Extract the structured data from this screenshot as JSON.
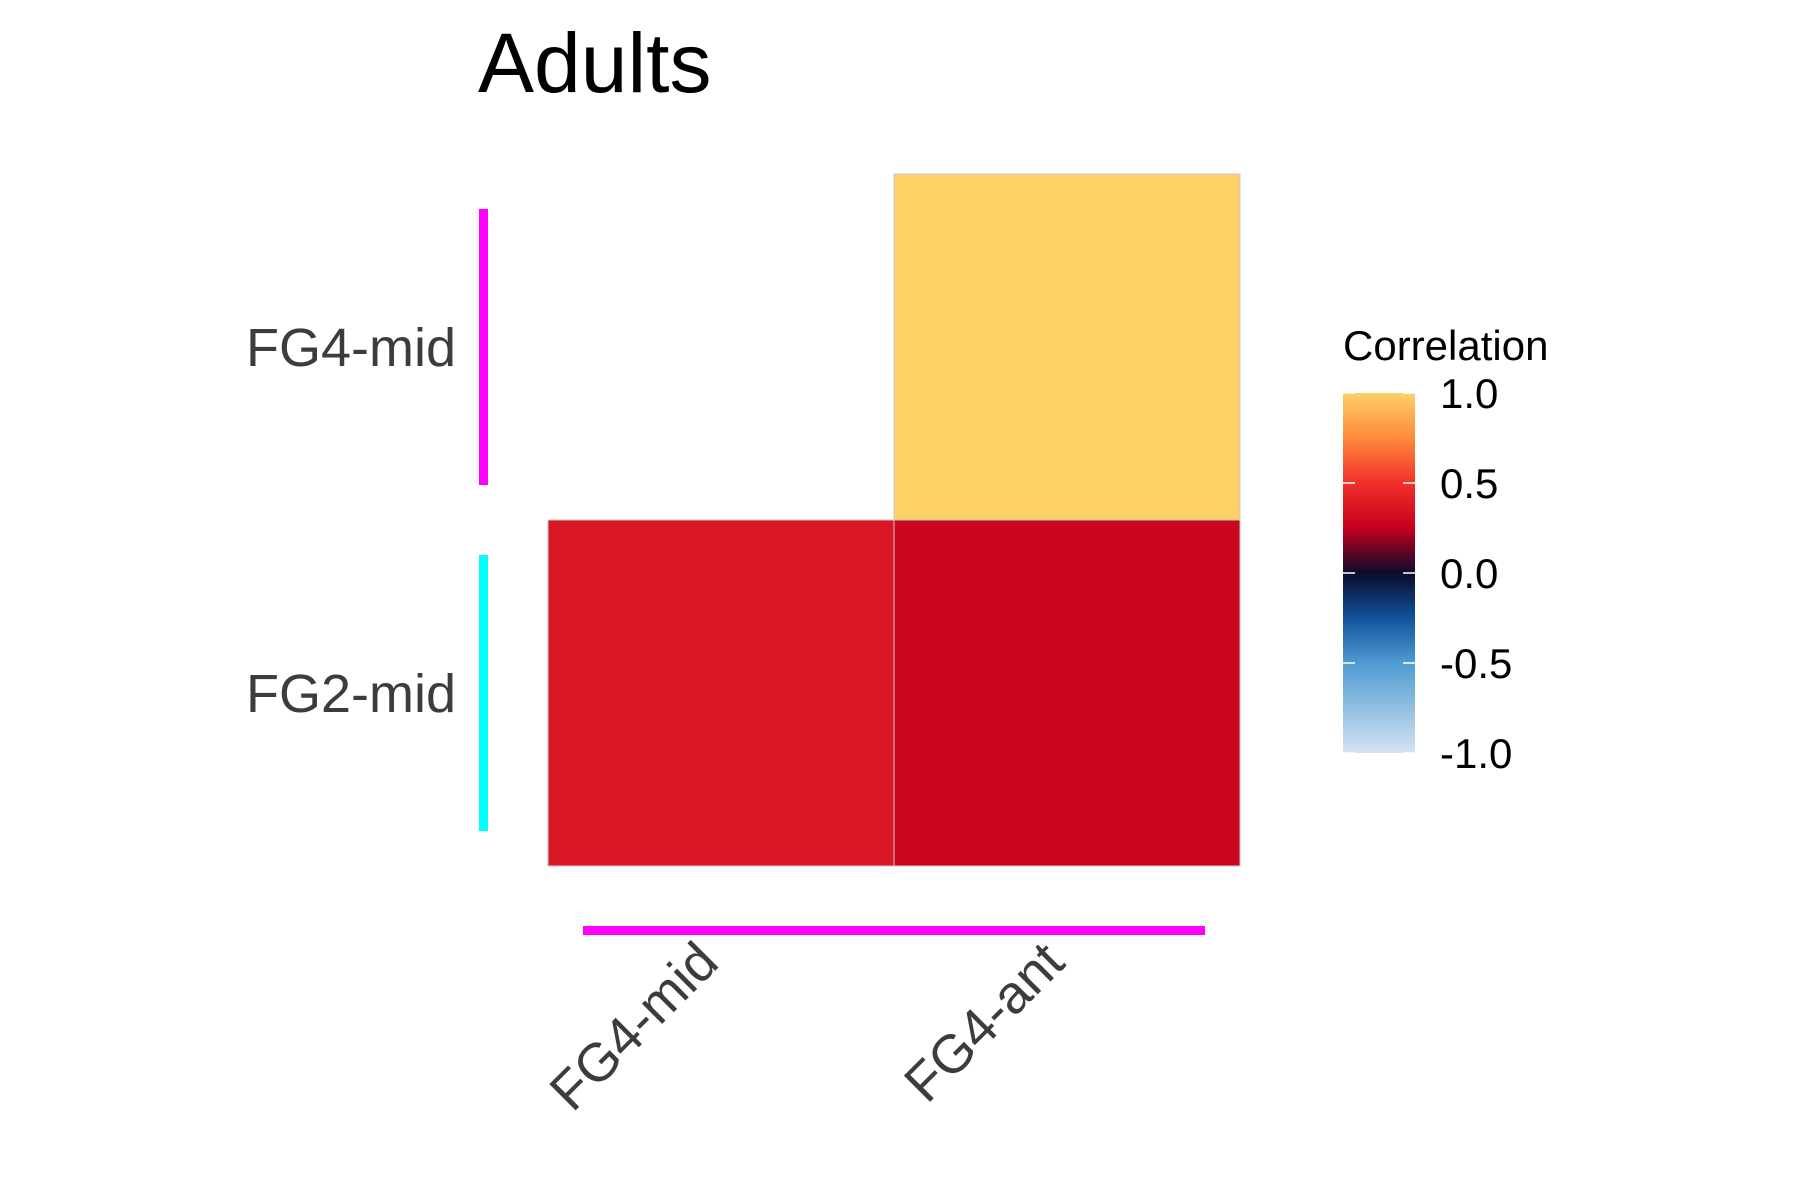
{
  "chart_data": {
    "type": "heatmap",
    "title": "Adults",
    "x_categories": [
      "FG4-mid",
      "FG4-ant"
    ],
    "y_categories": [
      "FG4-mid",
      "FG2-mid"
    ],
    "cells": [
      {
        "x": "FG4-ant",
        "y": "FG4-mid",
        "value": 1.0
      },
      {
        "x": "FG4-mid",
        "y": "FG2-mid",
        "value": 0.37
      },
      {
        "x": "FG4-ant",
        "y": "FG2-mid",
        "value": 0.28
      }
    ],
    "x_group_colors": [
      "#ff00ff",
      "#ff00ff"
    ],
    "y_group_colors": [
      "#ff00ff",
      "#00ffff"
    ],
    "legend": {
      "title": "Correlation",
      "ticks": [
        "1.0",
        "0.5",
        "0.0",
        "-0.5",
        "-1.0"
      ],
      "tick_values": [
        1.0,
        0.5,
        0.0,
        -0.5,
        -1.0
      ],
      "range": [
        -1,
        1
      ],
      "placement": "right"
    },
    "colorscale": [
      {
        "value": -1.0,
        "color": "#d3e3f3"
      },
      {
        "value": -0.5,
        "color": "#4f9bd1"
      },
      {
        "value": -0.25,
        "color": "#11539b"
      },
      {
        "value": 0.0,
        "color": "#0b0b2a"
      },
      {
        "value": 0.25,
        "color": "#c5001d"
      },
      {
        "value": 0.5,
        "color": "#f2302a"
      },
      {
        "value": 0.75,
        "color": "#fd8a3b"
      },
      {
        "value": 1.0,
        "color": "#fdd166"
      }
    ]
  }
}
